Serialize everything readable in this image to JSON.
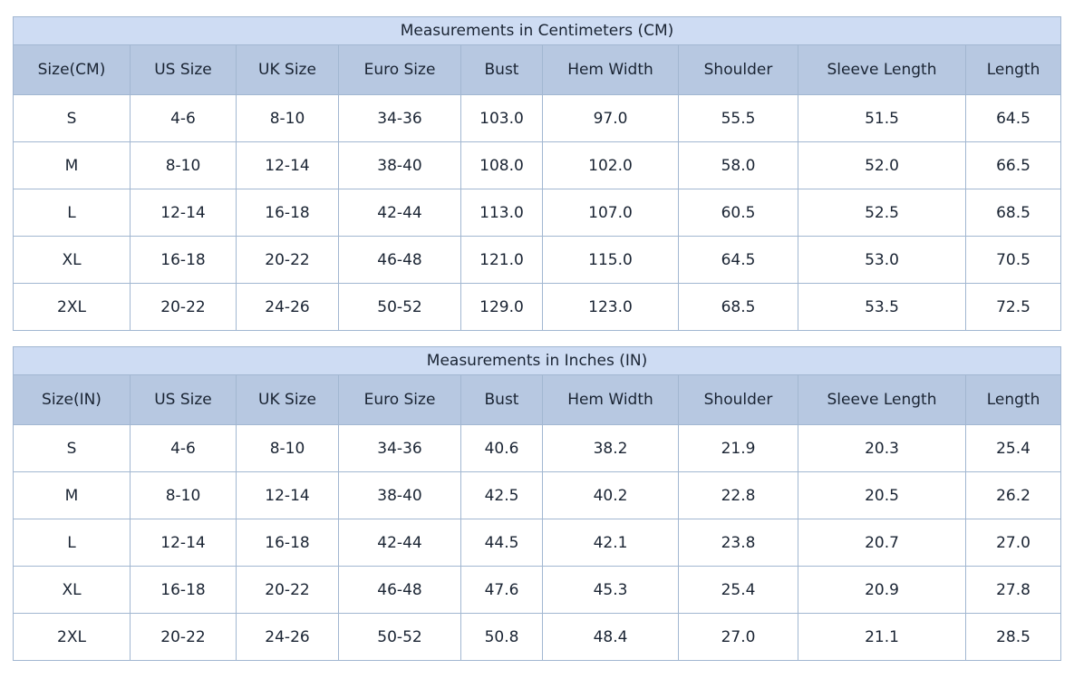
{
  "colors": {
    "page_bg": "#ffffff",
    "title_row_bg": "#cedcf3",
    "header_row_bg": "#b7c8e1",
    "table_border": "#a2b7d1",
    "text": "#1a2433",
    "data_row_bg": "#ffffff"
  },
  "chart_data": [
    {
      "type": "table",
      "title": "Measurements in Centimeters (CM)",
      "columns": [
        "Size(CM)",
        "US Size",
        "UK Size",
        "Euro Size",
        "Bust",
        "Hem Width",
        "Shoulder",
        "Sleeve Length",
        "Length"
      ],
      "rows": [
        [
          "S",
          "4-6",
          "8-10",
          "34-36",
          "103.0",
          "97.0",
          "55.5",
          "51.5",
          "64.5"
        ],
        [
          "M",
          "8-10",
          "12-14",
          "38-40",
          "108.0",
          "102.0",
          "58.0",
          "52.0",
          "66.5"
        ],
        [
          "L",
          "12-14",
          "16-18",
          "42-44",
          "113.0",
          "107.0",
          "60.5",
          "52.5",
          "68.5"
        ],
        [
          "XL",
          "16-18",
          "20-22",
          "46-48",
          "121.0",
          "115.0",
          "64.5",
          "53.0",
          "70.5"
        ],
        [
          "2XL",
          "20-22",
          "24-26",
          "50-52",
          "129.0",
          "123.0",
          "68.5",
          "53.5",
          "72.5"
        ]
      ]
    },
    {
      "type": "table",
      "title": "Measurements in Inches (IN)",
      "columns": [
        "Size(IN)",
        "US Size",
        "UK Size",
        "Euro Size",
        "Bust",
        "Hem Width",
        "Shoulder",
        "Sleeve Length",
        "Length"
      ],
      "rows": [
        [
          "S",
          "4-6",
          "8-10",
          "34-36",
          "40.6",
          "38.2",
          "21.9",
          "20.3",
          "25.4"
        ],
        [
          "M",
          "8-10",
          "12-14",
          "38-40",
          "42.5",
          "40.2",
          "22.8",
          "20.5",
          "26.2"
        ],
        [
          "L",
          "12-14",
          "16-18",
          "42-44",
          "44.5",
          "42.1",
          "23.8",
          "20.7",
          "27.0"
        ],
        [
          "XL",
          "16-18",
          "20-22",
          "46-48",
          "47.6",
          "45.3",
          "25.4",
          "20.9",
          "27.8"
        ],
        [
          "2XL",
          "20-22",
          "24-26",
          "50-52",
          "50.8",
          "48.4",
          "27.0",
          "21.1",
          "28.5"
        ]
      ]
    }
  ]
}
